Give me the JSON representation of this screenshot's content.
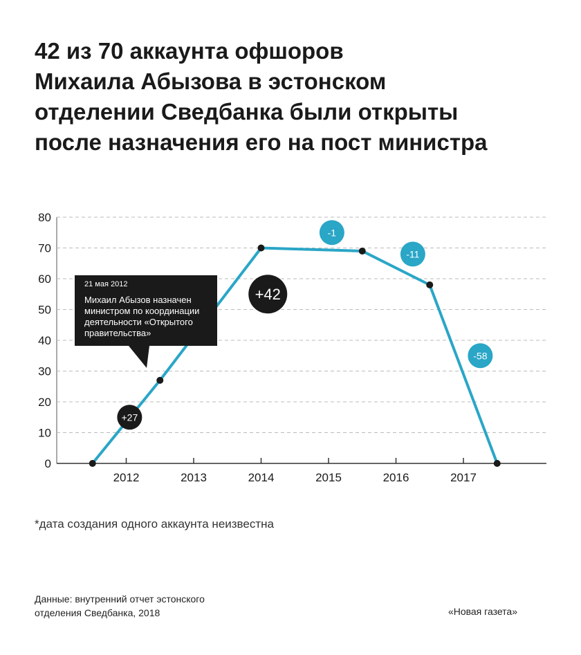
{
  "title_lines": [
    "42 из 70 аккаунта офшоров",
    "Михаила Абызова в эстонском",
    "отделении Сведбанка были открыты",
    "после назначения его на пост министра"
  ],
  "footnote": "*дата создания одного аккаунта неизвестна",
  "source_lines": [
    "Данные: внутренний отчет эстонского",
    "отделения Сведбанка, 2018"
  ],
  "brand": "«Новая газета»",
  "colors": {
    "line": "#2aa6c7",
    "dark": "#1a1a1a",
    "badge_blue": "#2aa6c7",
    "grid": "#bbbbbb"
  },
  "chart_data": {
    "type": "line",
    "categories": [
      "2012",
      "2013",
      "2014",
      "2015",
      "2016",
      "2017"
    ],
    "points": [
      {
        "x": 2011.5,
        "y": 0
      },
      {
        "x": 2012.5,
        "y": 27
      },
      {
        "x": 2014.0,
        "y": 70
      },
      {
        "x": 2015.5,
        "y": 69
      },
      {
        "x": 2016.5,
        "y": 58
      },
      {
        "x": 2017.5,
        "y": 0
      }
    ],
    "ylim": [
      0,
      80
    ],
    "yticks": [
      0,
      10,
      20,
      30,
      40,
      50,
      60,
      70,
      80
    ],
    "grid": true,
    "badges": [
      {
        "label": "+27",
        "x": 2012.05,
        "y": 15,
        "style": "dark"
      },
      {
        "label": "+42",
        "x": 2014.1,
        "y": 55,
        "style": "dark-large"
      },
      {
        "label": "-1",
        "x": 2015.05,
        "y": 75,
        "style": "blue"
      },
      {
        "label": "-11",
        "x": 2016.25,
        "y": 68,
        "style": "blue"
      },
      {
        "label": "-58",
        "x": 2017.25,
        "y": 35,
        "style": "blue"
      }
    ],
    "annotation": {
      "date": "21 мая 2012",
      "text_lines": [
        "Михаил Абызов назначен",
        "министром по координации",
        "деятельности «Открытого",
        "правительства»"
      ]
    }
  }
}
